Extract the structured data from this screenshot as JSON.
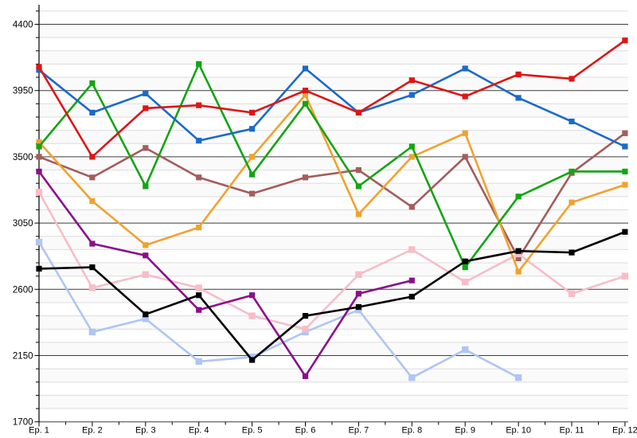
{
  "chart_data": {
    "type": "line",
    "title": "",
    "legend": "none",
    "grid": "horizontal major and minor lines, white background",
    "categories": [
      "Ep. 1",
      "Ep. 2",
      "Ep. 3",
      "Ep. 4",
      "Ep. 5",
      "Ep. 6",
      "Ep. 7",
      "Ep. 8",
      "Ep. 9",
      "Ep. 10",
      "Ep. 11",
      "Ep. 12"
    ],
    "x_axis": {
      "label": "",
      "tick_labels": [
        "Ep. 1",
        "Ep. 2",
        "Ep. 3",
        "Ep. 4",
        "Ep. 5",
        "Ep. 6",
        "Ep. 7",
        "Ep. 8",
        "Ep. 9",
        "Ep. 10",
        "Ep. 11",
        "Ep. 12"
      ],
      "minor_ticks": "midpoints between episodes"
    },
    "y_axis": {
      "label": "",
      "min": 1700,
      "max": 4490,
      "major_step": 450,
      "minor_step": 90,
      "major_tick_labels": [
        "4400",
        "3950",
        "3500",
        "3050",
        "2600",
        "2150",
        "1700"
      ]
    },
    "marker": "filled square",
    "series": [
      {
        "name": "light-blue",
        "color": "#aec6f2",
        "marker_size": 8.4,
        "values": [
          2920,
          2310,
          2400,
          2110,
          2140,
          2310,
          2460,
          2000,
          2190,
          2000,
          null,
          null
        ]
      },
      {
        "name": "brown",
        "color": "#a35d5d",
        "marker_size": 7.2,
        "values": [
          3500,
          3360,
          3560,
          3360,
          3250,
          3360,
          3410,
          3160,
          3500,
          2810,
          3390,
          3660
        ]
      },
      {
        "name": "pink",
        "color": "#f7bdc9",
        "marker_size": 8.4,
        "values": [
          3260,
          2610,
          2700,
          2610,
          2420,
          2330,
          2700,
          2870,
          2650,
          2840,
          2570,
          2690
        ]
      },
      {
        "name": "purple",
        "color": "#8b0f8b",
        "marker_size": 7.2,
        "values": [
          3400,
          2910,
          2830,
          2460,
          2560,
          2010,
          2570,
          2660,
          null,
          null,
          null,
          null
        ]
      },
      {
        "name": "orange",
        "color": "#f0a22e",
        "marker_size": 7.2,
        "values": [
          3600,
          3200,
          2900,
          3020,
          3500,
          3920,
          3110,
          3500,
          3660,
          2720,
          3190,
          3310
        ]
      },
      {
        "name": "green",
        "color": "#13a513",
        "marker_size": 7.2,
        "values": [
          3570,
          4000,
          3300,
          4130,
          3380,
          3860,
          3300,
          3570,
          2750,
          3230,
          3400,
          3400
        ]
      },
      {
        "name": "blue",
        "color": "#1b6ac9",
        "marker_size": 7.2,
        "values": [
          4090,
          3800,
          3930,
          3610,
          3690,
          4100,
          3800,
          3920,
          4100,
          3900,
          3740,
          3570
        ]
      },
      {
        "name": "red",
        "color": "#dd1616",
        "marker_size": 7.2,
        "values": [
          4110,
          3500,
          3830,
          3850,
          3800,
          3950,
          3800,
          4020,
          3910,
          4060,
          4030,
          4290
        ]
      },
      {
        "name": "black",
        "color": "#000000",
        "marker_size": 7.2,
        "values": [
          2740,
          2750,
          2430,
          2560,
          2120,
          2420,
          2480,
          2550,
          2790,
          2860,
          2850,
          2990
        ]
      }
    ],
    "style": {
      "major_grid_color": "#3d3d3d",
      "minor_grid_color": "#dcdcdc",
      "band_color": "#fafafa",
      "axis_color": "#000000",
      "background": "#ffffff"
    }
  }
}
